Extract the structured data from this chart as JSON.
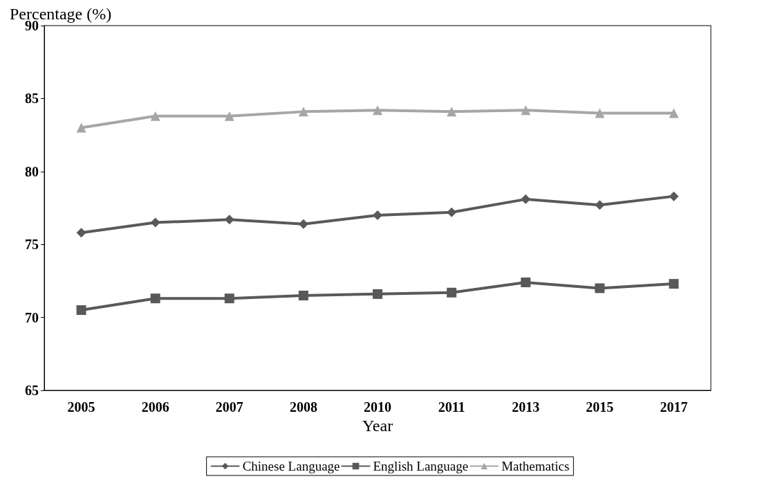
{
  "chart_data": {
    "type": "line",
    "xlabel": "Year",
    "ylabel": "Percentage (%)",
    "categories": [
      "2005",
      "2006",
      "2007",
      "2008",
      "2010",
      "2011",
      "2013",
      "2015",
      "2017"
    ],
    "series": [
      {
        "name": "Chinese Language",
        "color": "#595959",
        "marker": "diamond",
        "values": [
          75.8,
          76.5,
          76.7,
          76.4,
          77.0,
          77.2,
          78.1,
          77.7,
          78.3
        ]
      },
      {
        "name": "English Language",
        "color": "#595959",
        "marker": "square",
        "values": [
          70.5,
          71.3,
          71.3,
          71.5,
          71.6,
          71.7,
          72.4,
          72.0,
          72.3
        ]
      },
      {
        "name": "Mathematics",
        "color": "#a6a6a6",
        "marker": "triangle",
        "values": [
          83.0,
          83.8,
          83.8,
          84.1,
          84.2,
          84.1,
          84.2,
          84.0,
          84.0
        ]
      }
    ],
    "ylim": [
      65,
      90
    ],
    "yticks": [
      65,
      70,
      75,
      80,
      85,
      90
    ],
    "grid": false,
    "legend": "bottom",
    "line_style": "solid"
  }
}
